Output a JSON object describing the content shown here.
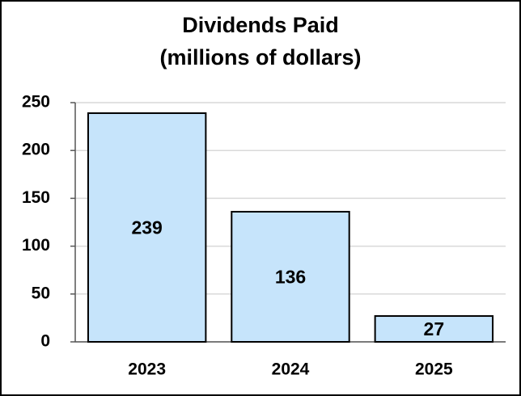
{
  "chart_data": {
    "type": "bar",
    "title": "Dividends Paid",
    "subtitle": "(millions of dollars)",
    "categories": [
      "2023",
      "2024",
      "2025"
    ],
    "values": [
      239,
      136,
      27
    ],
    "color": "#c6e4fb",
    "ylim": [
      0,
      250
    ],
    "yticks": [
      0,
      50,
      100,
      150,
      200,
      250
    ],
    "grid": true
  }
}
